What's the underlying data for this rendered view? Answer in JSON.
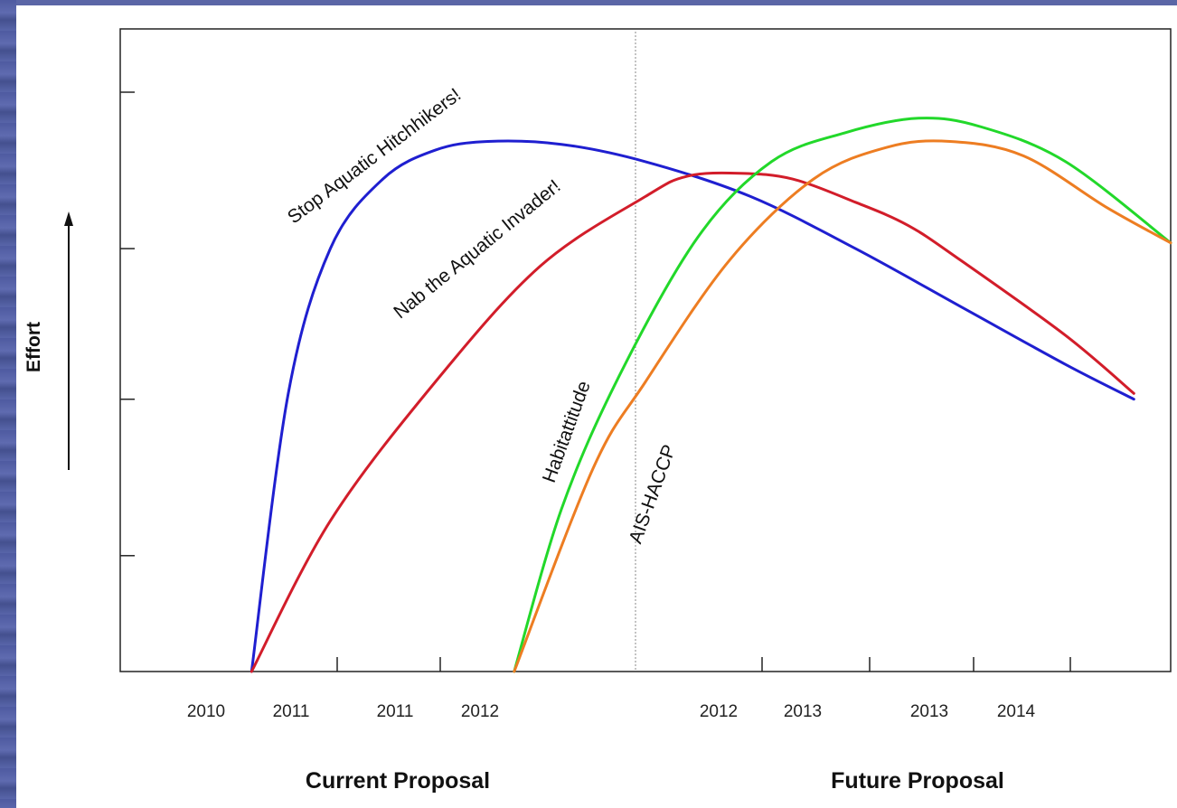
{
  "chart_data": {
    "type": "line",
    "ylabel": "Effort",
    "x_tick_labels": [
      "2010",
      "2011",
      "2011",
      "2012",
      "2012",
      "2013",
      "2013",
      "2014"
    ],
    "group_labels": [
      "Current Proposal",
      "Future Proposal"
    ],
    "xlim": [
      0,
      10
    ],
    "ylim": [
      0,
      100
    ],
    "y_ticks": [
      0,
      20,
      47,
      73,
      100
    ],
    "grid": false,
    "legend": "none",
    "series": [
      {
        "name": "Stop Aquatic Hitchhikers!",
        "color": "#1f1fd0",
        "x": [
          1.25,
          1.6,
          2.0,
          2.5,
          3.0,
          3.5,
          4.2,
          5.0,
          6.0,
          7.0,
          8.0,
          9.0,
          9.65
        ],
        "y": [
          0,
          48,
          73,
          85,
          90,
          91.5,
          91,
          88,
          82,
          73,
          63,
          53,
          47
        ]
      },
      {
        "name": "Nab the Aquatic Invader!",
        "color": "#d21d2a",
        "x": [
          1.25,
          2.0,
          3.0,
          4.0,
          5.0,
          5.4,
          5.9,
          6.4,
          7.0,
          7.5,
          8.0,
          9.0,
          9.65
        ],
        "y": [
          0,
          26,
          50,
          70,
          82,
          85.5,
          86,
          85,
          81,
          77,
          71,
          58,
          48
        ]
      },
      {
        "name": "Habitattitude",
        "color": "#22d82a",
        "x": [
          3.75,
          4.2,
          4.75,
          5.5,
          6.2,
          6.9,
          7.6,
          8.2,
          9.0,
          10.0
        ],
        "y": [
          0,
          28,
          51,
          75,
          88,
          93,
          95.5,
          94,
          88,
          74
        ]
      },
      {
        "name": "AIS-HACCP",
        "color": "#ed7d22",
        "x": [
          3.75,
          4.5,
          5.0,
          5.8,
          6.6,
          7.3,
          7.9,
          8.6,
          9.4,
          10.0
        ],
        "y": [
          0,
          35,
          50,
          71,
          85,
          90.5,
          91.5,
          89,
          80,
          74
        ]
      }
    ]
  }
}
